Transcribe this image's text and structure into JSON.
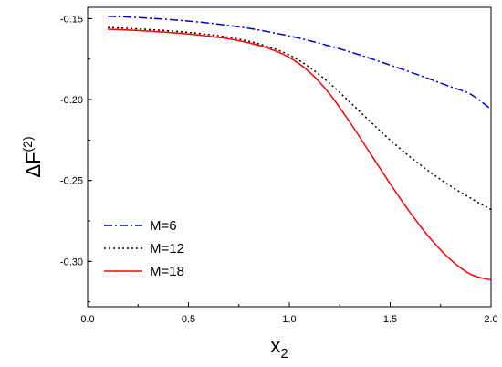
{
  "chart_data": {
    "type": "line",
    "xlabel": {
      "main": "x",
      "sub": "2"
    },
    "ylabel": {
      "main": "ΔF",
      "sup": "(2)"
    },
    "xlim": [
      0.0,
      2.0
    ],
    "ylim": [
      -0.328,
      -0.143
    ],
    "x_ticks": [
      0.0,
      0.5,
      1.0,
      1.5,
      2.0
    ],
    "x_tick_labels": [
      "0.0",
      "0.5",
      "1.0",
      "1.5",
      "2.0"
    ],
    "y_ticks": [
      -0.15,
      -0.2,
      -0.25,
      -0.3
    ],
    "y_tick_labels": [
      "-0.15",
      "-0.20",
      "-0.25",
      "-0.30"
    ],
    "grid": false,
    "legend_position": "bottom-left",
    "x": [
      0.1,
      0.2,
      0.3,
      0.4,
      0.5,
      0.6,
      0.7,
      0.8,
      0.9,
      1.0,
      1.1,
      1.2,
      1.3,
      1.4,
      1.5,
      1.6,
      1.7,
      1.8,
      1.9,
      2.0
    ],
    "series": [
      {
        "name": "M=6",
        "color": "#0000cc",
        "dash": "dashdot",
        "values": [
          -0.1485,
          -0.149,
          -0.1497,
          -0.1505,
          -0.1515,
          -0.1527,
          -0.1542,
          -0.156,
          -0.1582,
          -0.1607,
          -0.1636,
          -0.1669,
          -0.1705,
          -0.1745,
          -0.1787,
          -0.183,
          -0.1875,
          -0.1921,
          -0.1968,
          -0.206
        ]
      },
      {
        "name": "M=12",
        "color": "#000000",
        "dash": "dotted",
        "values": [
          -0.1555,
          -0.156,
          -0.1567,
          -0.1575,
          -0.1585,
          -0.1598,
          -0.1615,
          -0.164,
          -0.1675,
          -0.1725,
          -0.18,
          -0.19,
          -0.2015,
          -0.2135,
          -0.225,
          -0.2355,
          -0.245,
          -0.2535,
          -0.261,
          -0.268
        ]
      },
      {
        "name": "M=18",
        "color": "#ff0000",
        "dash": "solid",
        "values": [
          -0.1565,
          -0.157,
          -0.1577,
          -0.1585,
          -0.1595,
          -0.1608,
          -0.1625,
          -0.165,
          -0.1685,
          -0.174,
          -0.183,
          -0.1965,
          -0.214,
          -0.233,
          -0.252,
          -0.27,
          -0.286,
          -0.299,
          -0.308,
          -0.3115
        ]
      }
    ]
  }
}
